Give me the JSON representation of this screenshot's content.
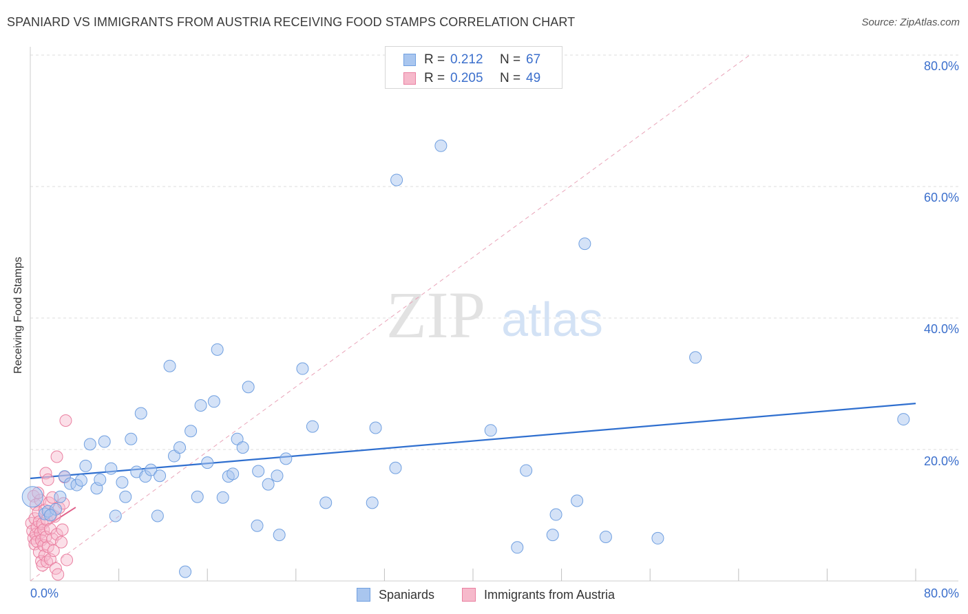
{
  "title": "SPANIARD VS IMMIGRANTS FROM AUSTRIA RECEIVING FOOD STAMPS CORRELATION CHART",
  "source": "Source: ZipAtlas.com",
  "watermark": {
    "zip": "ZIP",
    "atlas": "atlas"
  },
  "legend_top": {
    "rows": [
      {
        "r_label": "R =",
        "r_value": "0.212",
        "n_label": "N =",
        "n_value": "67"
      },
      {
        "r_label": "R =",
        "r_value": "0.205",
        "n_label": "N =",
        "n_value": "49"
      }
    ]
  },
  "legend_bottom": {
    "series1": "Spaniards",
    "series2": "Immigrants from Austria"
  },
  "colors": {
    "blue_fill": "#a9c6ef",
    "blue_stroke": "#6f9fe0",
    "blue_line": "#2f6fcf",
    "pink_fill": "#f6b9cb",
    "pink_stroke": "#ea7fa0",
    "pink_line": "#e0608a",
    "tick_text": "#3b6fcc",
    "grid": "#dedede"
  },
  "x_tick_labels": {
    "left": "0.0%",
    "right": "80.0%"
  },
  "y_tick_labels": [
    "80.0%",
    "60.0%",
    "40.0%",
    "20.0%"
  ],
  "chart_data": {
    "type": "scatter",
    "title": "SPANIARD VS IMMIGRANTS FROM AUSTRIA RECEIVING FOOD STAMPS CORRELATION CHART",
    "xlabel": "",
    "ylabel": "Receiving Food Stamps",
    "xlim": [
      0,
      80
    ],
    "ylim": [
      0,
      80
    ],
    "yticks": [
      20,
      40,
      60,
      80
    ],
    "series": [
      {
        "name": "Spaniards",
        "R": 0.212,
        "N": 67,
        "trend": {
          "x": [
            0,
            80
          ],
          "y": [
            15.6,
            27.0
          ]
        },
        "points": [
          {
            "x": 0.2,
            "y": 12.8,
            "big": true
          },
          {
            "x": 1.3,
            "y": 10.2
          },
          {
            "x": 1.6,
            "y": 10.6
          },
          {
            "x": 2.3,
            "y": 10.9
          },
          {
            "x": 2.7,
            "y": 12.8
          },
          {
            "x": 3.1,
            "y": 15.9
          },
          {
            "x": 3.6,
            "y": 14.8
          },
          {
            "x": 4.2,
            "y": 14.6
          },
          {
            "x": 4.6,
            "y": 15.3
          },
          {
            "x": 5.0,
            "y": 17.5
          },
          {
            "x": 5.4,
            "y": 20.8
          },
          {
            "x": 6.0,
            "y": 14.1
          },
          {
            "x": 6.3,
            "y": 15.4
          },
          {
            "x": 6.7,
            "y": 21.2
          },
          {
            "x": 7.3,
            "y": 17.1
          },
          {
            "x": 7.7,
            "y": 9.9
          },
          {
            "x": 8.3,
            "y": 15.0
          },
          {
            "x": 8.6,
            "y": 12.8
          },
          {
            "x": 9.1,
            "y": 21.6
          },
          {
            "x": 9.6,
            "y": 16.6
          },
          {
            "x": 10.0,
            "y": 25.5
          },
          {
            "x": 10.4,
            "y": 15.9
          },
          {
            "x": 10.9,
            "y": 16.9
          },
          {
            "x": 11.5,
            "y": 9.9
          },
          {
            "x": 11.7,
            "y": 16.0
          },
          {
            "x": 12.6,
            "y": 32.7
          },
          {
            "x": 13.0,
            "y": 19.0
          },
          {
            "x": 13.5,
            "y": 20.3
          },
          {
            "x": 14.0,
            "y": 1.4
          },
          {
            "x": 14.5,
            "y": 22.8
          },
          {
            "x": 15.1,
            "y": 12.8
          },
          {
            "x": 15.4,
            "y": 26.7
          },
          {
            "x": 16.0,
            "y": 18.0
          },
          {
            "x": 16.6,
            "y": 27.3
          },
          {
            "x": 16.9,
            "y": 35.2
          },
          {
            "x": 17.4,
            "y": 12.7
          },
          {
            "x": 17.9,
            "y": 15.9
          },
          {
            "x": 18.3,
            "y": 16.3
          },
          {
            "x": 18.7,
            "y": 21.6
          },
          {
            "x": 19.2,
            "y": 20.3
          },
          {
            "x": 19.7,
            "y": 29.5
          },
          {
            "x": 20.5,
            "y": 8.4
          },
          {
            "x": 20.6,
            "y": 16.7
          },
          {
            "x": 21.5,
            "y": 14.7
          },
          {
            "x": 22.3,
            "y": 16.0
          },
          {
            "x": 22.5,
            "y": 7.0
          },
          {
            "x": 23.1,
            "y": 18.6
          },
          {
            "x": 24.6,
            "y": 32.3
          },
          {
            "x": 25.5,
            "y": 23.5
          },
          {
            "x": 26.7,
            "y": 11.9
          },
          {
            "x": 30.9,
            "y": 11.9
          },
          {
            "x": 31.2,
            "y": 23.3
          },
          {
            "x": 33.0,
            "y": 17.2
          },
          {
            "x": 33.1,
            "y": 61.0
          },
          {
            "x": 37.1,
            "y": 66.2
          },
          {
            "x": 41.6,
            "y": 22.9
          },
          {
            "x": 44.0,
            "y": 5.1
          },
          {
            "x": 44.8,
            "y": 16.8
          },
          {
            "x": 47.2,
            "y": 7.0
          },
          {
            "x": 47.5,
            "y": 10.1
          },
          {
            "x": 49.4,
            "y": 12.2
          },
          {
            "x": 50.1,
            "y": 51.3
          },
          {
            "x": 52.0,
            "y": 6.7
          },
          {
            "x": 56.7,
            "y": 6.5
          },
          {
            "x": 60.1,
            "y": 34.0
          },
          {
            "x": 78.9,
            "y": 24.6
          },
          {
            "x": 1.8,
            "y": 10.0
          }
        ]
      },
      {
        "name": "Immigrants from Austria",
        "R": 0.205,
        "N": 49,
        "trend": {
          "x": [
            0,
            4.1
          ],
          "y": [
            6.8,
            11.2
          ]
        },
        "diagonal": {
          "x": [
            0,
            65
          ],
          "y": [
            0,
            80
          ]
        },
        "points": [
          {
            "x": 0.1,
            "y": 8.8
          },
          {
            "x": 0.2,
            "y": 7.6
          },
          {
            "x": 0.3,
            "y": 12.9
          },
          {
            "x": 0.3,
            "y": 6.5
          },
          {
            "x": 0.4,
            "y": 9.5
          },
          {
            "x": 0.4,
            "y": 5.6
          },
          {
            "x": 0.5,
            "y": 7.1
          },
          {
            "x": 0.5,
            "y": 11.6
          },
          {
            "x": 0.6,
            "y": 8.2
          },
          {
            "x": 0.6,
            "y": 6.0
          },
          {
            "x": 0.7,
            "y": 10.4
          },
          {
            "x": 0.8,
            "y": 9.0
          },
          {
            "x": 0.8,
            "y": 4.4
          },
          {
            "x": 0.9,
            "y": 7.3
          },
          {
            "x": 0.9,
            "y": 12.3
          },
          {
            "x": 1.0,
            "y": 3.0
          },
          {
            "x": 1.0,
            "y": 6.2
          },
          {
            "x": 1.1,
            "y": 8.7
          },
          {
            "x": 1.1,
            "y": 2.4
          },
          {
            "x": 1.2,
            "y": 5.4
          },
          {
            "x": 1.2,
            "y": 7.8
          },
          {
            "x": 1.3,
            "y": 10.8
          },
          {
            "x": 1.3,
            "y": 3.9
          },
          {
            "x": 1.4,
            "y": 16.4
          },
          {
            "x": 1.4,
            "y": 6.7
          },
          {
            "x": 1.5,
            "y": 9.3
          },
          {
            "x": 1.5,
            "y": 2.9
          },
          {
            "x": 1.6,
            "y": 15.4
          },
          {
            "x": 1.6,
            "y": 5.2
          },
          {
            "x": 1.7,
            "y": 11.9
          },
          {
            "x": 1.8,
            "y": 7.9
          },
          {
            "x": 1.8,
            "y": 3.3
          },
          {
            "x": 1.9,
            "y": 10.1
          },
          {
            "x": 2.0,
            "y": 6.4
          },
          {
            "x": 2.0,
            "y": 12.7
          },
          {
            "x": 2.1,
            "y": 4.6
          },
          {
            "x": 2.2,
            "y": 9.8
          },
          {
            "x": 2.3,
            "y": 1.9
          },
          {
            "x": 2.4,
            "y": 18.9
          },
          {
            "x": 2.4,
            "y": 7.1
          },
          {
            "x": 2.5,
            "y": 1.0
          },
          {
            "x": 2.6,
            "y": 11.1
          },
          {
            "x": 2.8,
            "y": 5.9
          },
          {
            "x": 2.9,
            "y": 7.8
          },
          {
            "x": 3.0,
            "y": 11.8
          },
          {
            "x": 3.1,
            "y": 15.8
          },
          {
            "x": 3.2,
            "y": 24.4
          },
          {
            "x": 3.3,
            "y": 3.2
          },
          {
            "x": 0.7,
            "y": 13.4
          }
        ]
      }
    ]
  }
}
